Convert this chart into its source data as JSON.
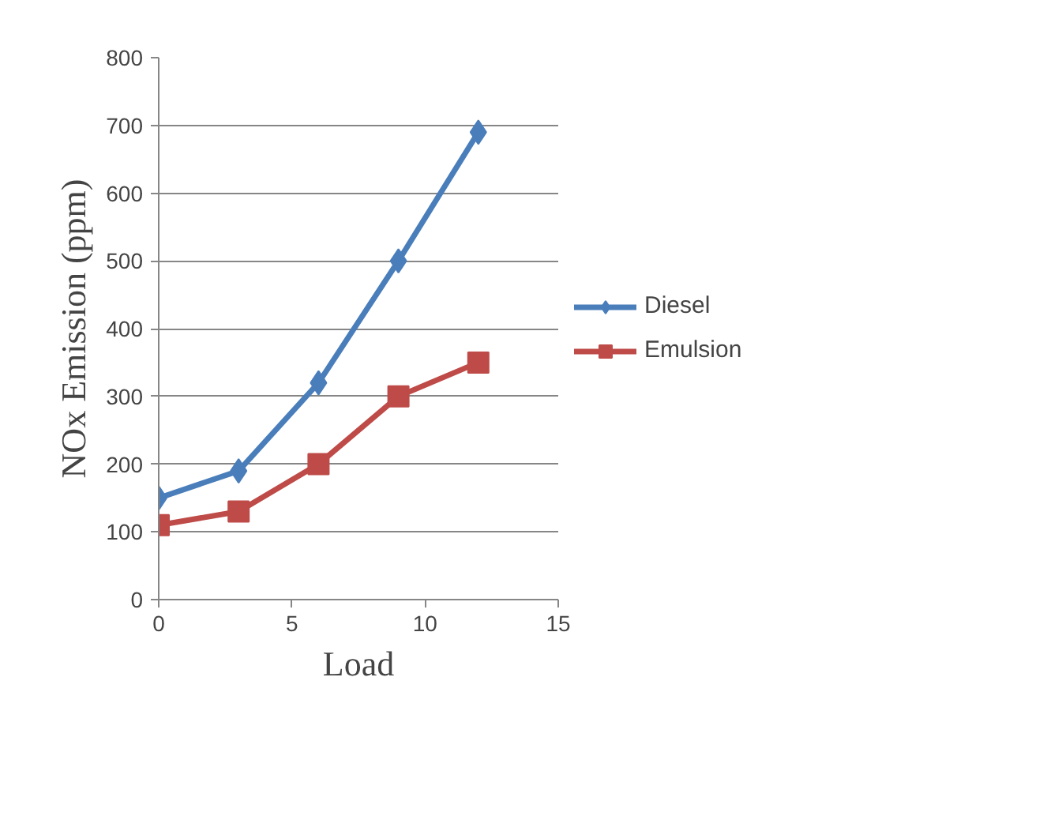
{
  "chart_data": {
    "type": "line",
    "xlabel": "Load",
    "ylabel": "NOx Emission (ppm)",
    "x": [
      0,
      3,
      6,
      9,
      12
    ],
    "series": [
      {
        "name": "Diesel",
        "color": "#4a7ebb",
        "marker": "diamond",
        "values": [
          150,
          190,
          320,
          500,
          690
        ]
      },
      {
        "name": "Emulsion",
        "color": "#be4b48",
        "marker": "square",
        "values": [
          110,
          130,
          200,
          300,
          350
        ]
      }
    ],
    "xlim": [
      0,
      15
    ],
    "xticks": [
      0,
      5,
      10,
      15
    ],
    "ylim": [
      0,
      800
    ],
    "yticks": [
      0,
      100,
      200,
      300,
      400,
      500,
      600,
      700,
      800
    ],
    "grid": "y",
    "legend": "right",
    "line_style": "solid"
  }
}
